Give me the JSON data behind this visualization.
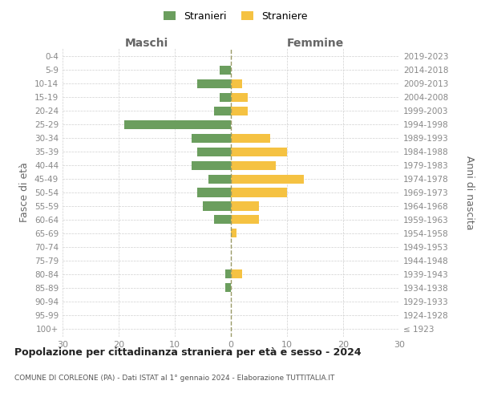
{
  "age_groups": [
    "100+",
    "95-99",
    "90-94",
    "85-89",
    "80-84",
    "75-79",
    "70-74",
    "65-69",
    "60-64",
    "55-59",
    "50-54",
    "45-49",
    "40-44",
    "35-39",
    "30-34",
    "25-29",
    "20-24",
    "15-19",
    "10-14",
    "5-9",
    "0-4"
  ],
  "birth_years": [
    "≤ 1923",
    "1924-1928",
    "1929-1933",
    "1934-1938",
    "1939-1943",
    "1944-1948",
    "1949-1953",
    "1954-1958",
    "1959-1963",
    "1964-1968",
    "1969-1973",
    "1974-1978",
    "1979-1983",
    "1984-1988",
    "1989-1993",
    "1994-1998",
    "1999-2003",
    "2004-2008",
    "2009-2013",
    "2014-2018",
    "2019-2023"
  ],
  "males": [
    0,
    0,
    0,
    1,
    1,
    0,
    0,
    0,
    3,
    5,
    6,
    4,
    7,
    6,
    7,
    19,
    3,
    2,
    6,
    2,
    0
  ],
  "females": [
    0,
    0,
    0,
    0,
    2,
    0,
    0,
    1,
    5,
    5,
    10,
    13,
    8,
    10,
    7,
    0,
    3,
    3,
    2,
    0,
    0
  ],
  "male_color": "#6b9e5e",
  "female_color": "#f5c242",
  "male_label": "Stranieri",
  "female_label": "Straniere",
  "title": "Popolazione per cittadinanza straniera per età e sesso - 2024",
  "subtitle": "COMUNE DI CORLEONE (PA) - Dati ISTAT al 1° gennaio 2024 - Elaborazione TUTTITALIA.IT",
  "label_maschi": "Maschi",
  "label_femmine": "Femmine",
  "ylabel_left": "Fasce di età",
  "ylabel_right": "Anni di nascita",
  "xlim": 30,
  "bg_color": "#ffffff",
  "grid_color": "#d0d0d0",
  "tick_color": "#888888"
}
